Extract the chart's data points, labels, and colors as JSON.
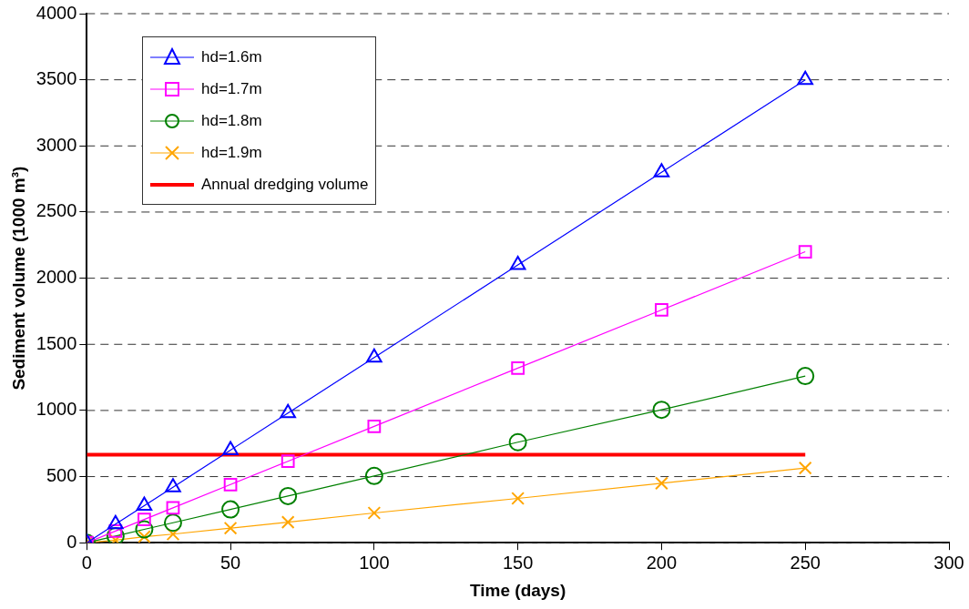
{
  "chart_data": {
    "type": "line",
    "xlabel": "Time (days)",
    "ylabel": "Sediment volume (1000 m³)",
    "x": [
      0,
      10,
      20,
      30,
      50,
      70,
      100,
      150,
      200,
      250
    ],
    "series": [
      {
        "name": "hd=1.6m",
        "color": "#0000ff",
        "marker": "triangle",
        "values": [
          0,
          140,
          280,
          420,
          700,
          980,
          1400,
          2100,
          2800,
          3500
        ]
      },
      {
        "name": "hd=1.7m",
        "color": "#ff00ff",
        "marker": "square",
        "values": [
          0,
          88,
          176,
          264,
          440,
          616,
          880,
          1320,
          1760,
          2200
        ]
      },
      {
        "name": "hd=1.8m",
        "color": "#008000",
        "marker": "circle",
        "values": [
          0,
          50,
          101,
          151,
          252,
          353,
          505,
          760,
          1005,
          1260
        ]
      },
      {
        "name": "hd=1.9m",
        "color": "#ffa500",
        "marker": "cross",
        "values": [
          0,
          20,
          45,
          65,
          110,
          155,
          225,
          335,
          450,
          565
        ]
      },
      {
        "name": "Annual dredging volume",
        "color": "#ff0000",
        "marker": "none",
        "x": [
          0,
          250
        ],
        "values": [
          665,
          665
        ]
      }
    ],
    "xlim": [
      0,
      300
    ],
    "xticks": [
      0,
      50,
      100,
      150,
      200,
      250,
      300
    ],
    "ylim": [
      0,
      4000
    ],
    "yticks": [
      0,
      500,
      1000,
      1500,
      2000,
      2500,
      3000,
      3500,
      4000
    ],
    "grid": "y",
    "legend": "top left"
  }
}
